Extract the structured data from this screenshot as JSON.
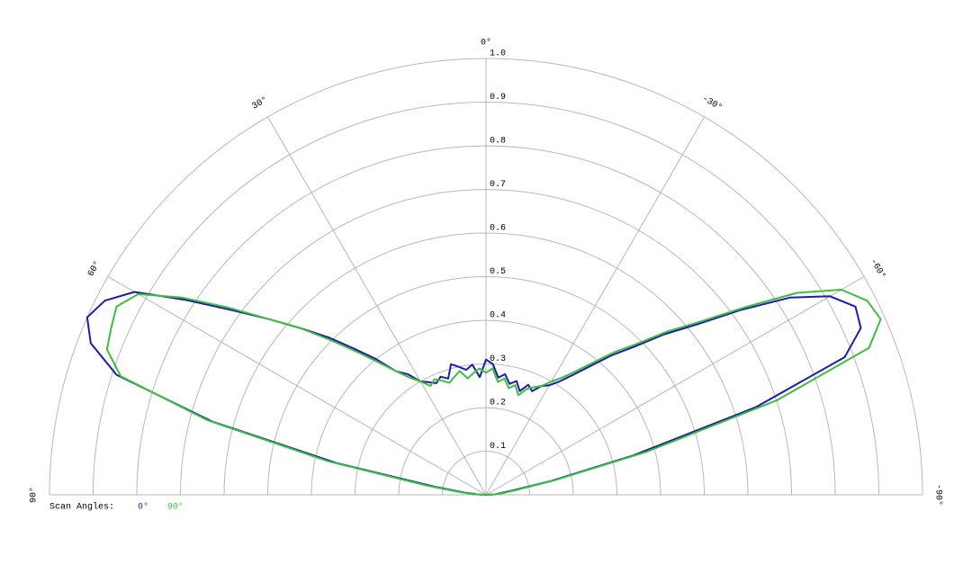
{
  "chart_data": {
    "type": "polar",
    "legend_title": "Scan Angles:",
    "x": [
      90,
      87,
      84,
      81,
      78,
      75,
      72,
      69,
      66,
      63,
      60,
      57,
      54,
      51,
      48,
      45,
      42,
      39,
      36,
      33,
      30,
      27,
      24,
      21,
      18,
      15,
      12,
      9,
      6,
      3,
      0,
      -3,
      -6,
      -9,
      -12,
      -15,
      -18,
      -21,
      -24,
      -27,
      -30,
      -33,
      -36,
      -39,
      -42,
      -45,
      -48,
      -51,
      -54,
      -57,
      -60,
      -63,
      -66,
      -69,
      -72,
      -75,
      -78,
      -81,
      -84,
      -87,
      -90
    ],
    "series": [
      {
        "name": "0°",
        "color": "#1c1cb0",
        "values": [
          0,
          0.02,
          0.05,
          0.12,
          0.35,
          0.65,
          0.89,
          0.97,
          1.0,
          0.98,
          0.93,
          0.82,
          0.72,
          0.64,
          0.57,
          0.51,
          0.45,
          0.4,
          0.35,
          0.33,
          0.3,
          0.29,
          0.28,
          0.29,
          0.28,
          0.31,
          0.3,
          0.29,
          0.3,
          0.27,
          0.31,
          0.3,
          0.27,
          0.28,
          0.26,
          0.27,
          0.25,
          0.27,
          0.26,
          0.28,
          0.29,
          0.31,
          0.34,
          0.38,
          0.43,
          0.48,
          0.55,
          0.62,
          0.72,
          0.83,
          0.91,
          0.95,
          0.94,
          0.88,
          0.65,
          0.35,
          0.15,
          0.06,
          0.03,
          0.02,
          0
        ]
      },
      {
        "name": "90°",
        "color": "#3cbf3c",
        "values": [
          0,
          0.03,
          0.06,
          0.14,
          0.37,
          0.66,
          0.88,
          0.93,
          0.94,
          0.95,
          0.92,
          0.83,
          0.73,
          0.64,
          0.57,
          0.5,
          0.44,
          0.39,
          0.35,
          0.32,
          0.3,
          0.28,
          0.29,
          0.28,
          0.27,
          0.28,
          0.29,
          0.27,
          0.28,
          0.29,
          0.28,
          0.29,
          0.26,
          0.27,
          0.25,
          0.26,
          0.24,
          0.26,
          0.27,
          0.28,
          0.3,
          0.32,
          0.35,
          0.39,
          0.44,
          0.49,
          0.56,
          0.63,
          0.73,
          0.85,
          0.94,
          0.98,
          0.99,
          0.94,
          0.7,
          0.38,
          0.16,
          0.07,
          0.04,
          0.02,
          0
        ]
      }
    ],
    "rlim": [
      0,
      1
    ],
    "rticks": [
      0.1,
      0.2,
      0.3,
      0.4,
      0.5,
      0.6,
      0.7,
      0.8,
      0.9,
      {
        "value": 1,
        "label": "1.0"
      }
    ],
    "angle_ticks": [
      {
        "value": 90,
        "label": "90°"
      },
      {
        "value": 60,
        "label": "60°"
      },
      {
        "value": 30,
        "label": "30°"
      },
      {
        "value": 0,
        "label": "0°"
      },
      {
        "value": -30,
        "label": "-30°"
      },
      {
        "value": -60,
        "label": "-60°"
      },
      {
        "value": -90,
        "label": "-90°"
      }
    ]
  }
}
